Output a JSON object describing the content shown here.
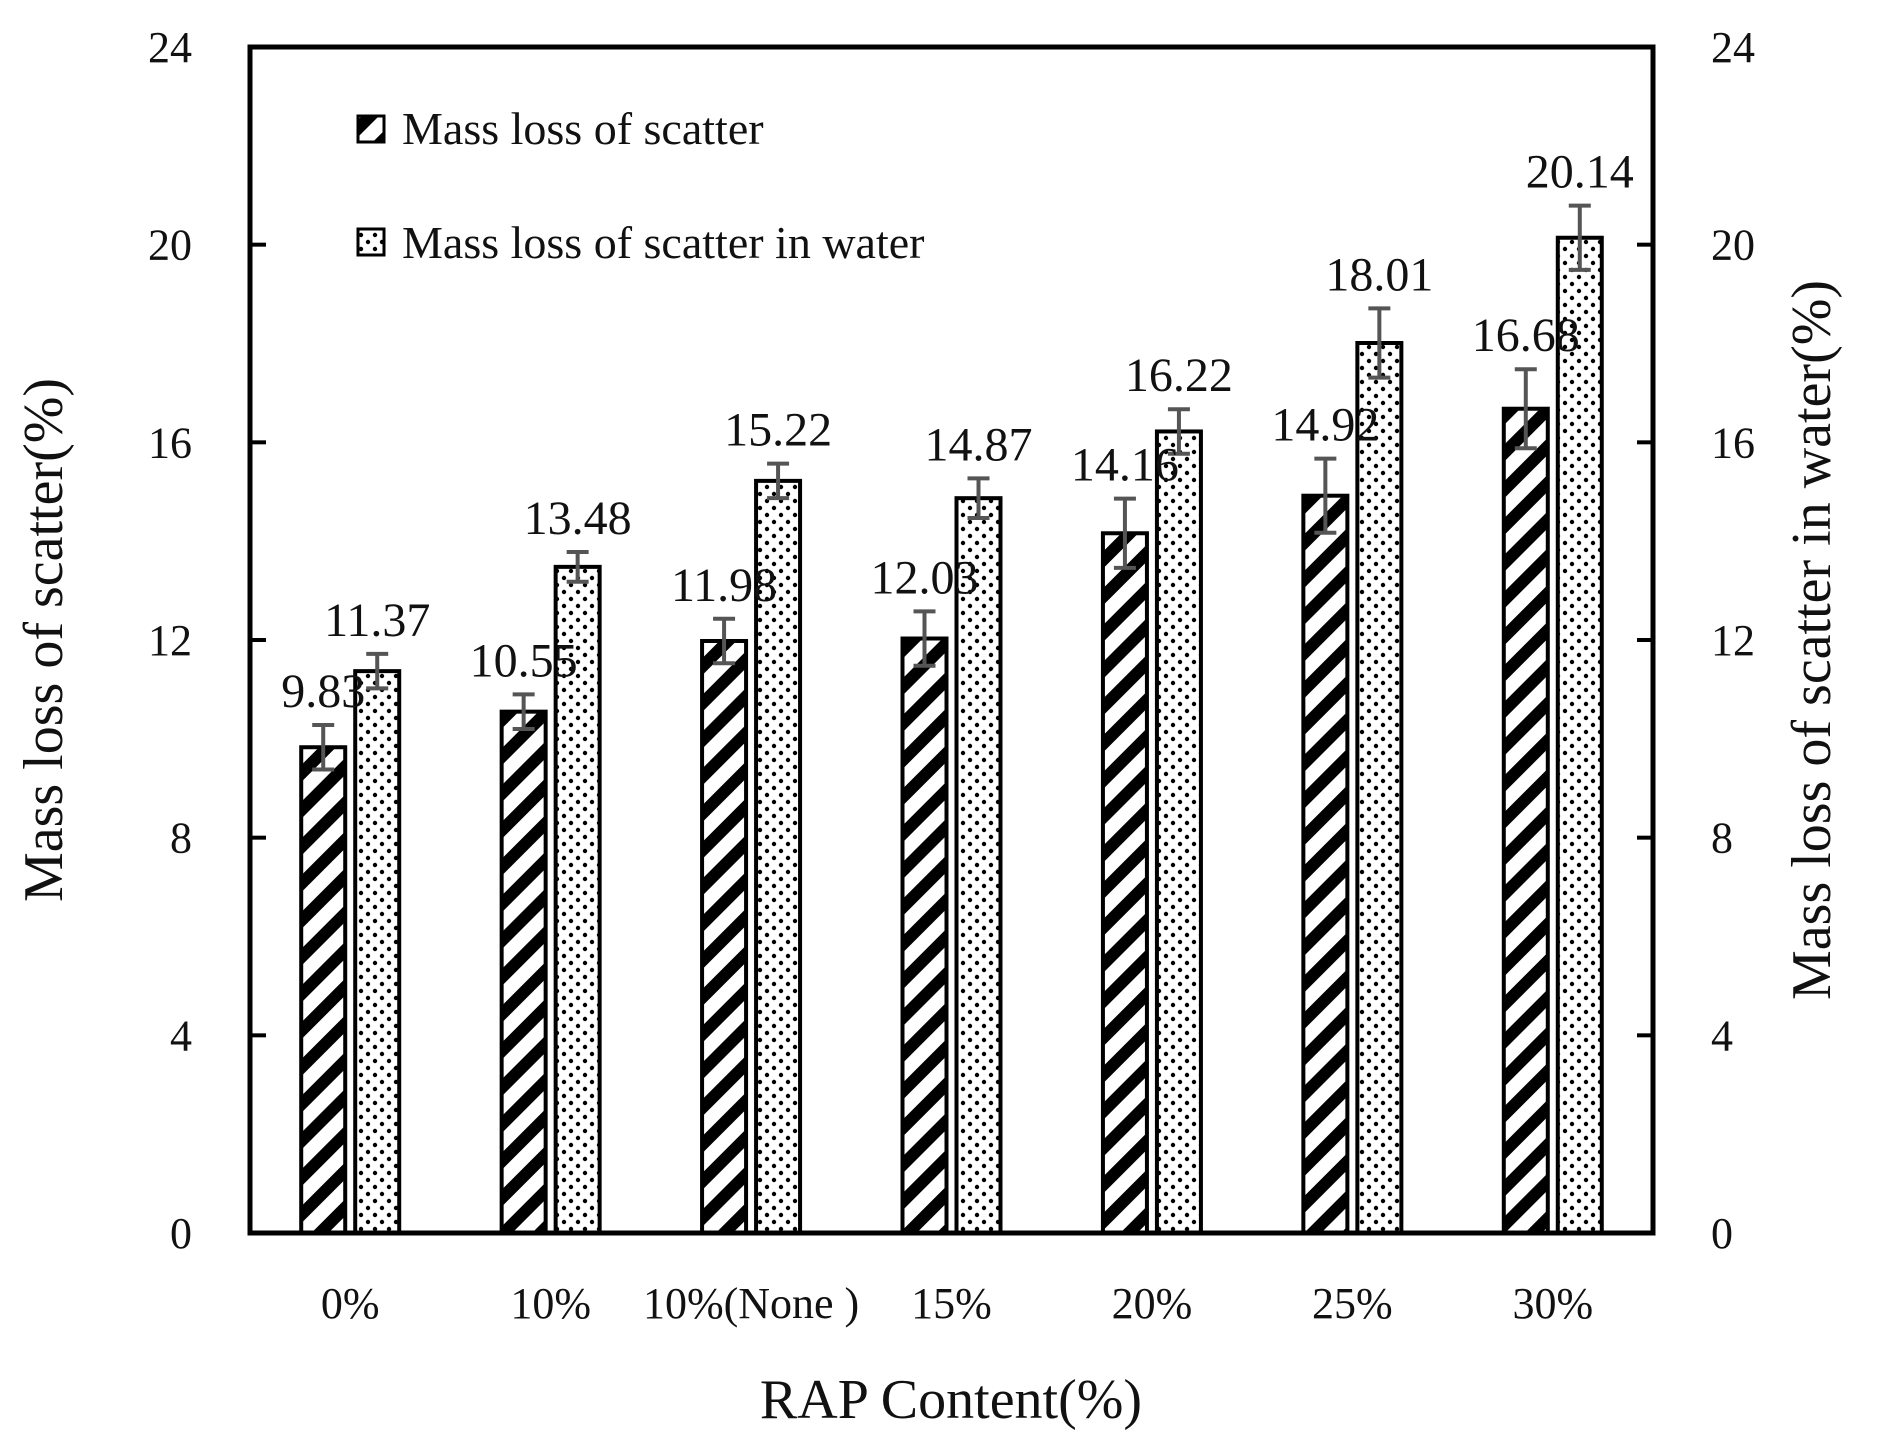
{
  "chart_data": {
    "type": "bar",
    "xlabel": "RAP Content(%)",
    "ylabel": "Mass loss of scatter(%)",
    "ylabel_right": "Mass loss of scatter in water(%)",
    "categories": [
      "0%",
      "10%",
      "10%(None )",
      "15%",
      "20%",
      "25%",
      "30%"
    ],
    "ylim": [
      0,
      24
    ],
    "yticks": [
      "0",
      "4",
      "8",
      "12",
      "16",
      "20",
      "24"
    ],
    "ylim_right": [
      0,
      24
    ],
    "yticks_right": [
      "0",
      "4",
      "8",
      "12",
      "16",
      "20",
      "24"
    ],
    "grid": false,
    "legend_position": "top-left",
    "series": [
      {
        "name": "Mass loss of scatter",
        "pattern": "diagonal-hatch",
        "values": [
          9.83,
          10.55,
          11.98,
          12.03,
          14.16,
          14.92,
          16.68
        ],
        "labels": [
          "9.83",
          "10.55",
          "11.98",
          "12.03",
          "14.16",
          "14.92",
          "16.68"
        ],
        "error": [
          0.45,
          0.35,
          0.45,
          0.55,
          0.7,
          0.75,
          0.8
        ]
      },
      {
        "name": "Mass loss of scatter in water",
        "pattern": "dots",
        "values": [
          11.37,
          13.48,
          15.22,
          14.87,
          16.22,
          18.01,
          20.14
        ],
        "labels": [
          "11.37",
          "13.48",
          "15.22",
          "14.87",
          "16.22",
          "18.01",
          "20.14"
        ],
        "error": [
          0.35,
          0.3,
          0.35,
          0.4,
          0.45,
          0.7,
          0.65
        ]
      }
    ],
    "colors": {
      "bar_outline": "#000000",
      "hatch": "#000000",
      "error_bar": "#555555",
      "fill": "#ffffff"
    }
  }
}
